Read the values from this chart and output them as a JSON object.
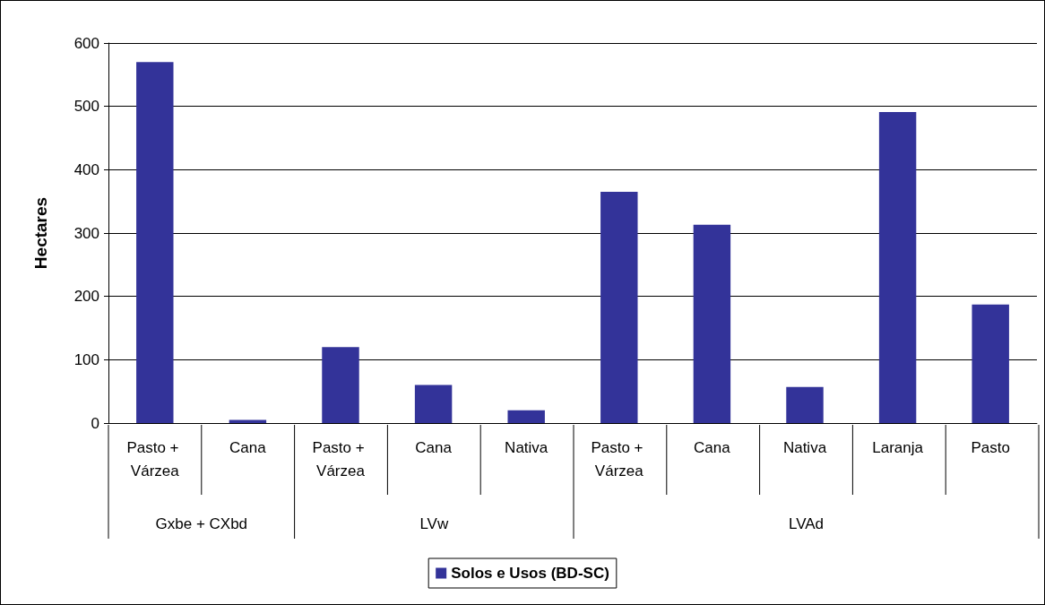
{
  "chart_data": {
    "type": "bar",
    "ylabel": "Hectares",
    "categories": [
      "Pasto + Várzea",
      "Cana",
      "Pasto + Várzea",
      "Cana",
      "Nativa",
      "Pasto + Várzea",
      "Cana",
      "Nativa",
      "Laranja",
      "Pasto"
    ],
    "series": [
      {
        "name": "Solos e Usos (BD-SC)",
        "color": "#333399",
        "values": [
          570,
          5,
          120,
          60,
          20,
          365,
          313,
          57,
          491,
          187
        ]
      }
    ],
    "annotations": [
      "Gxbe + CXbd",
      "LVw",
      "LVAd"
    ],
    "ylim": [
      0,
      600
    ],
    "yticks": [
      0,
      100,
      200,
      300,
      400,
      500,
      600
    ],
    "grid": "y",
    "legend": "bottom"
  }
}
